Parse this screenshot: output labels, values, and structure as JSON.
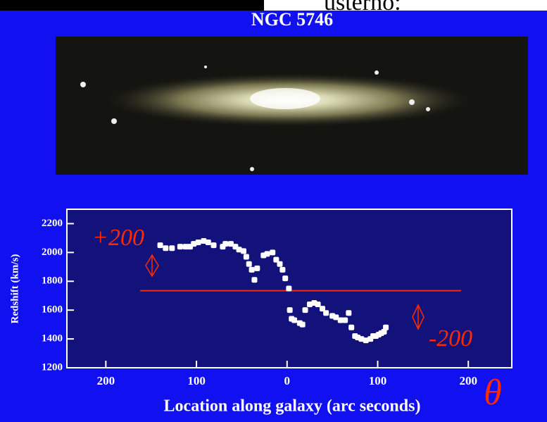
{
  "header": {
    "cut_text": "usterno:"
  },
  "chart_data": {
    "type": "scatter",
    "title": "NGC 5746",
    "xlabel": "Location along galaxy (arc seconds)",
    "ylabel": "Redshift (km/s)",
    "xlim": [
      243,
      -248
    ],
    "ylim": [
      1200,
      2300
    ],
    "xticks": [
      200,
      100,
      0,
      {
        "value": -100,
        "label": "100"
      },
      {
        "value": -200,
        "label": "200"
      }
    ],
    "yticks": [
      1200,
      1400,
      1600,
      1800,
      2000,
      2200
    ],
    "color": "#ffffff",
    "x": [
      140,
      134,
      127,
      118,
      112,
      107,
      103,
      98,
      92,
      87,
      81,
      71,
      68,
      62,
      57,
      53,
      48,
      45,
      42,
      39,
      36,
      33,
      26,
      22,
      16,
      12,
      8,
      5,
      2,
      -2,
      -3,
      -5,
      -8,
      -14,
      -17,
      -20,
      -25,
      -30,
      -34,
      -39,
      -43,
      -50,
      -54,
      -59,
      -64,
      -68,
      -71,
      -75,
      -78,
      -82,
      -87,
      -92,
      -95,
      -98,
      -101,
      -104,
      -107,
      -109
    ],
    "values": [
      2050,
      2030,
      2030,
      2040,
      2040,
      2040,
      2060,
      2070,
      2080,
      2070,
      2050,
      2040,
      2060,
      2060,
      2040,
      2020,
      2010,
      1970,
      1920,
      1880,
      1810,
      1890,
      1980,
      1990,
      2000,
      1950,
      1920,
      1880,
      1820,
      1750,
      1600,
      1540,
      1530,
      1510,
      1500,
      1600,
      1640,
      1650,
      1640,
      1610,
      1580,
      1560,
      1550,
      1530,
      1530,
      1580,
      1480,
      1420,
      1410,
      1400,
      1390,
      1400,
      1420,
      1420,
      1430,
      1440,
      1450,
      1480
    ],
    "systemic_line": {
      "y": 1735,
      "x_range": [
        162,
        -192
      ],
      "color": "#ff2a00"
    },
    "annotations": [
      "+200",
      "-200",
      "θ"
    ]
  }
}
